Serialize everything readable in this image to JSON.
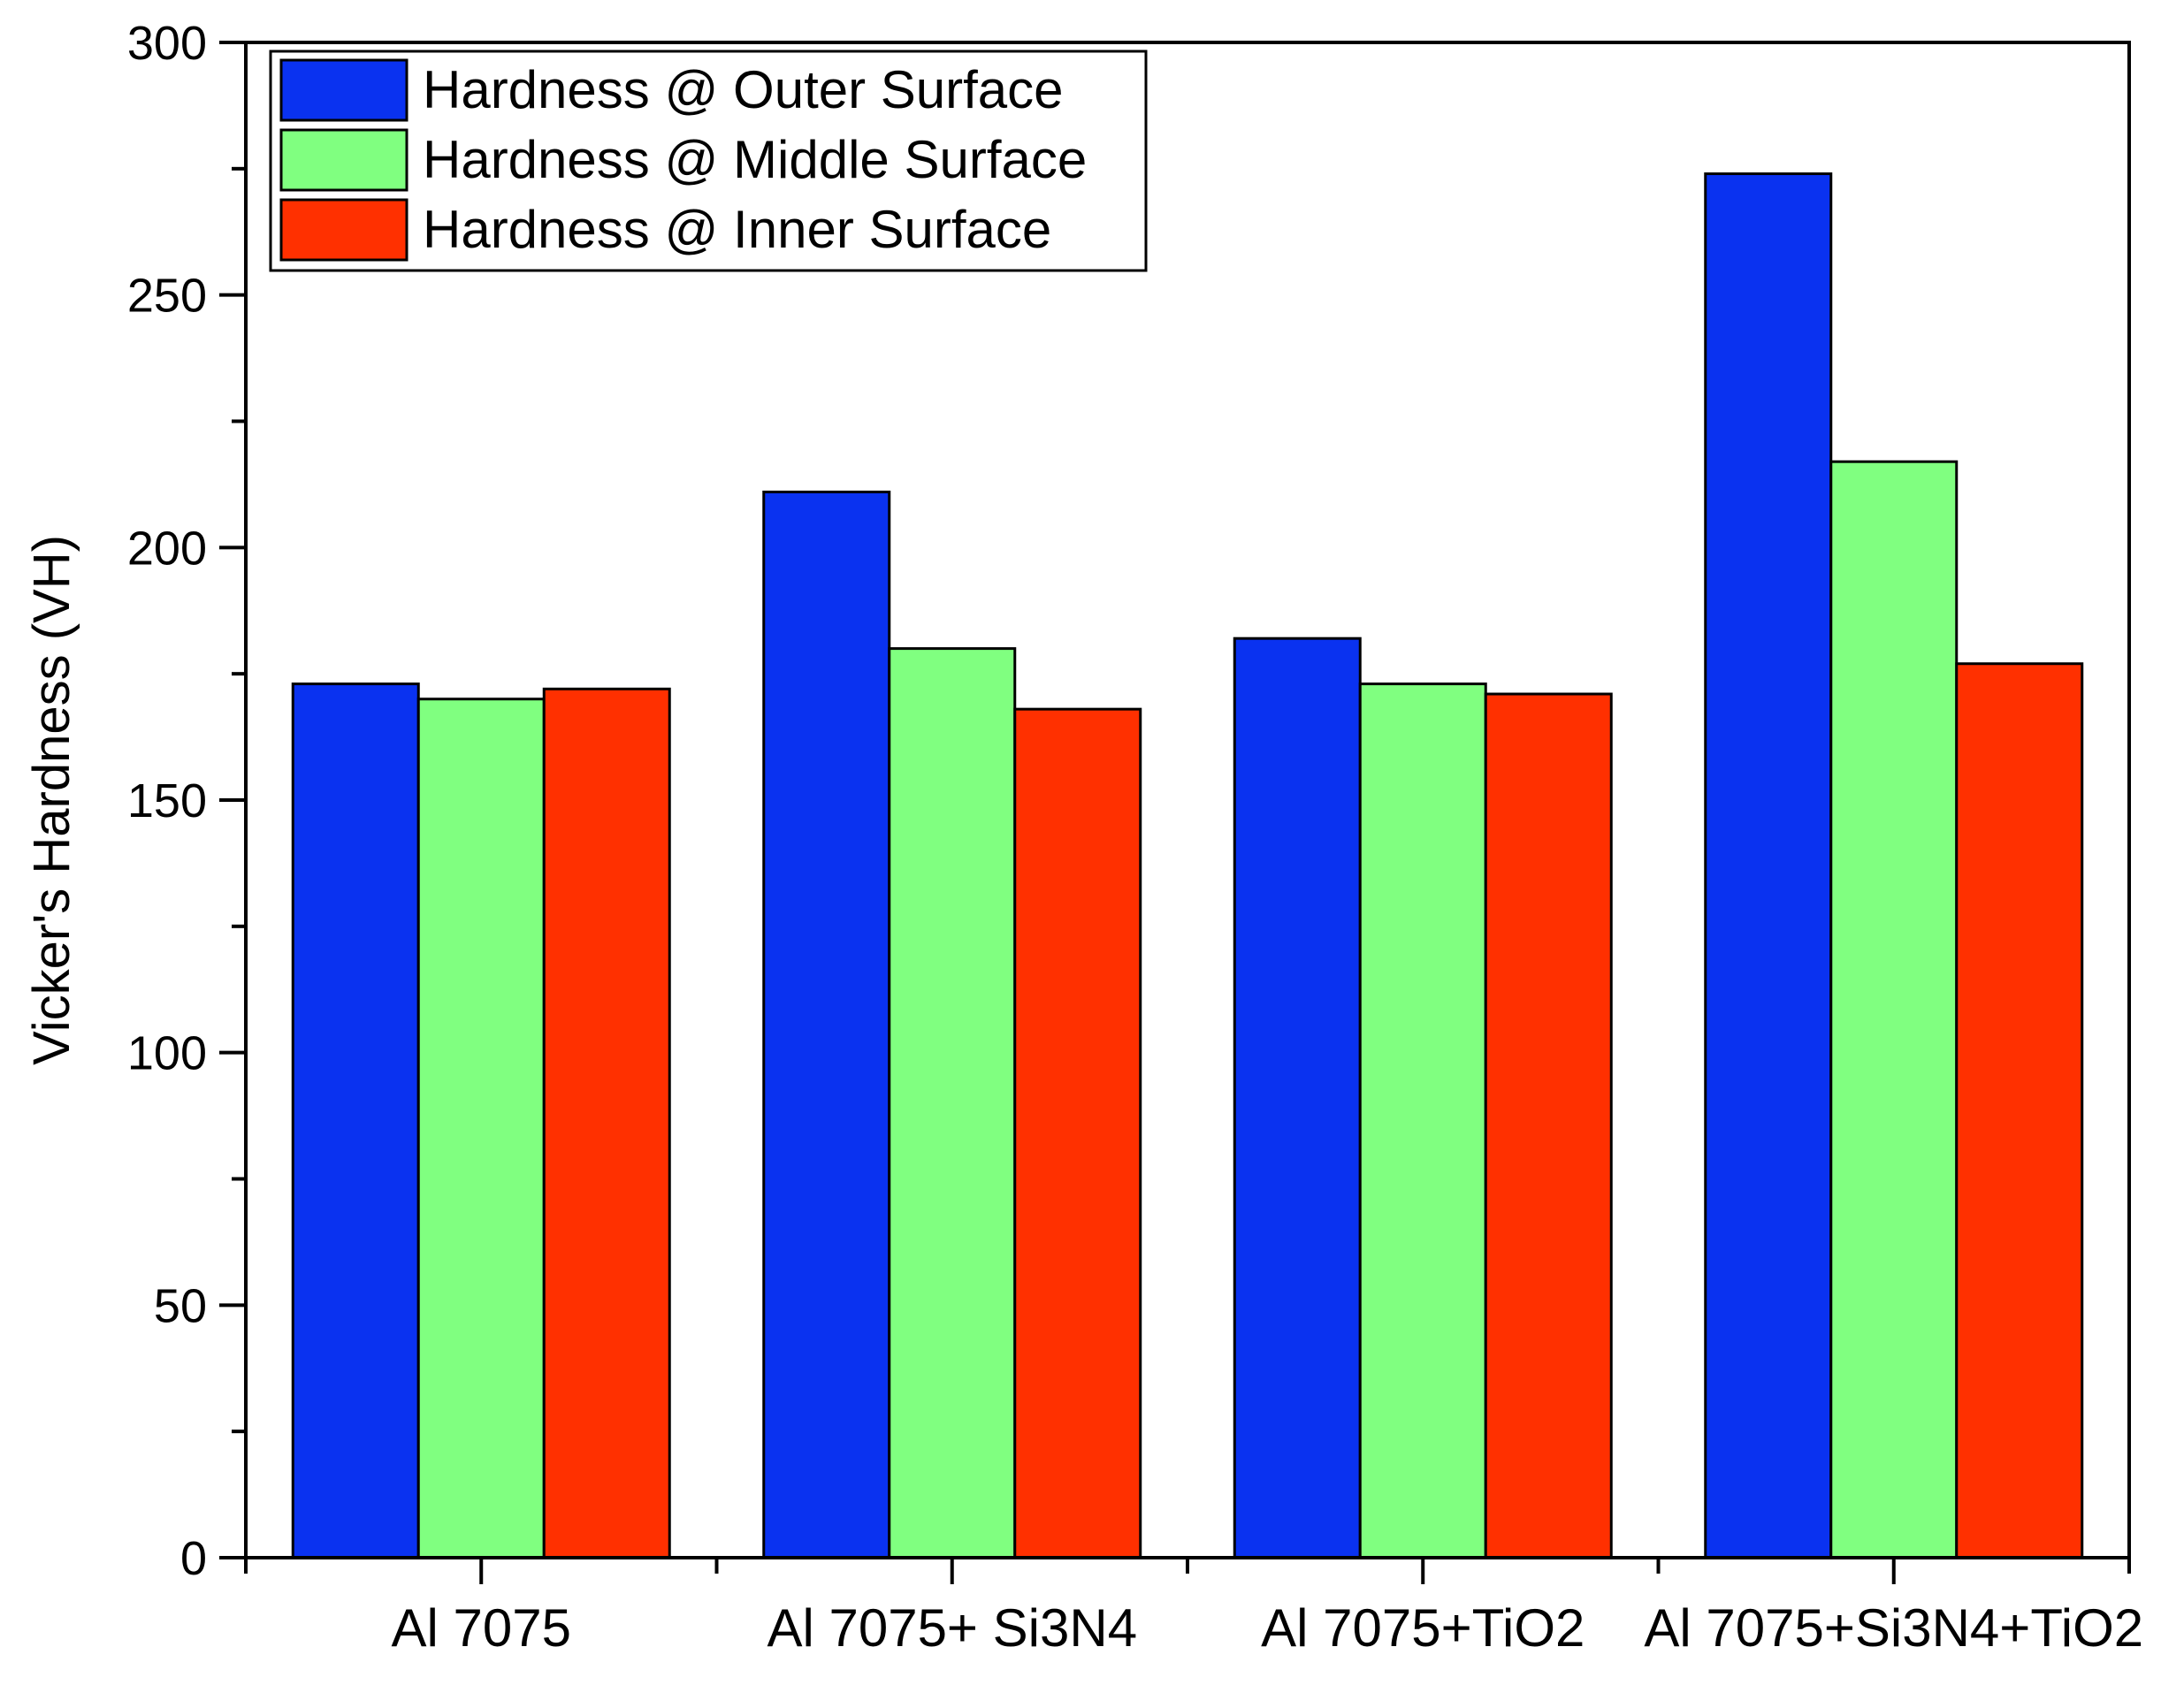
{
  "chart_data": {
    "type": "bar",
    "categories": [
      "Al 7075",
      "Al 7075+ Si3N4",
      "Al 7075+TiO2",
      "Al 7075+Si3N4+TiO2"
    ],
    "series": [
      {
        "name": "Hardness @ Outer Surface",
        "color": "#0a32f0",
        "values": [
          173,
          211,
          182,
          274
        ]
      },
      {
        "name": "Hardness @ Middle Surface",
        "color": "#80ff80",
        "values": [
          170,
          180,
          173,
          217
        ]
      },
      {
        "name": "Hardness @ Inner Surface",
        "color": "#ff3000",
        "values": [
          172,
          168,
          171,
          177
        ]
      }
    ],
    "xlabel": "",
    "ylabel": "Vicker's Hardness (VH)",
    "ylim": [
      0,
      300
    ],
    "yticks": [
      0,
      50,
      100,
      150,
      200,
      250,
      300
    ],
    "y_minor_step": 25,
    "legend_position": "top-left",
    "grid": false
  }
}
